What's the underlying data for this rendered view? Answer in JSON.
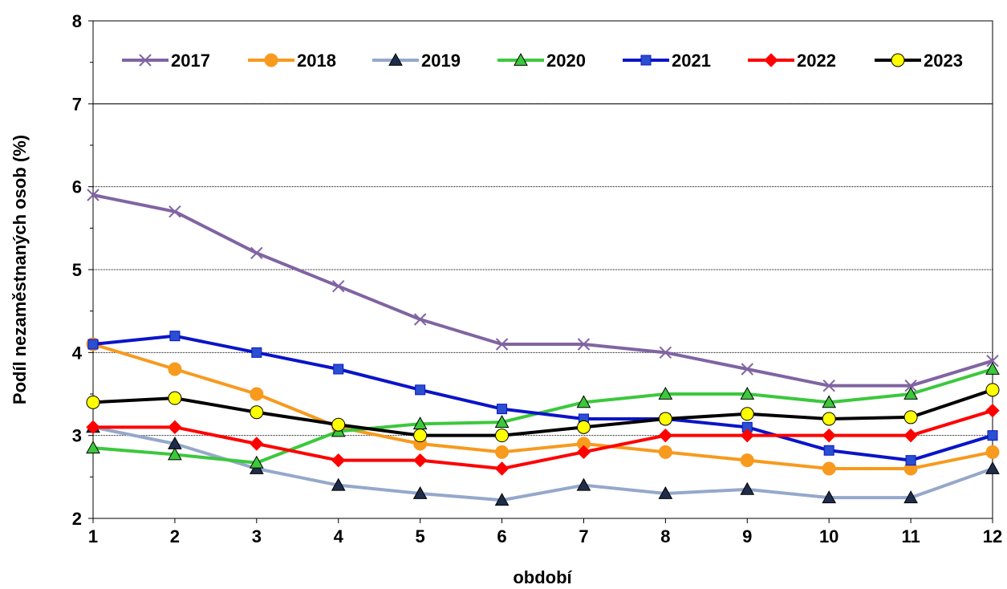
{
  "chart_data": {
    "type": "line",
    "title": "",
    "xlabel": "období",
    "ylabel": "Podíl nezaměstnaných osob (%)",
    "x": [
      1,
      2,
      3,
      4,
      5,
      6,
      7,
      8,
      9,
      10,
      11,
      12
    ],
    "xlim": [
      1,
      12
    ],
    "ylim": [
      2,
      8
    ],
    "yticks": [
      2,
      3,
      4,
      5,
      6,
      7,
      8
    ],
    "grid": "horizontal dotted",
    "legend_position": "top",
    "series": [
      {
        "name": "2017",
        "color": "#8064A2",
        "marker": "x",
        "values": [
          5.9,
          5.7,
          5.2,
          4.8,
          4.4,
          4.1,
          4.1,
          4.0,
          3.8,
          3.6,
          3.6,
          3.9
        ]
      },
      {
        "name": "2018",
        "color": "#F79A1E",
        "marker": "circle",
        "values": [
          4.1,
          3.8,
          3.5,
          3.1,
          2.9,
          2.8,
          2.9,
          2.8,
          2.7,
          2.6,
          2.6,
          2.8
        ]
      },
      {
        "name": "2019",
        "color": "#95A8CB",
        "marker": "triangle",
        "marker_fill": "#1F2D4A",
        "values": [
          3.1,
          2.9,
          2.6,
          2.4,
          2.3,
          2.22,
          2.4,
          2.3,
          2.35,
          2.25,
          2.25,
          2.6
        ]
      },
      {
        "name": "2020",
        "color": "#3CC83C",
        "marker": "triangle",
        "marker_fill": "#3CC83C",
        "values": [
          2.85,
          2.77,
          2.67,
          3.05,
          3.14,
          3.16,
          3.4,
          3.5,
          3.5,
          3.4,
          3.5,
          3.8
        ]
      },
      {
        "name": "2021",
        "color": "#0A14C8",
        "marker": "square",
        "marker_fill": "#2A4FD0",
        "values": [
          4.1,
          4.2,
          4.0,
          3.8,
          3.55,
          3.32,
          3.2,
          3.2,
          3.1,
          2.82,
          2.7,
          3.0
        ]
      },
      {
        "name": "2022",
        "color": "#FF0000",
        "marker": "diamond",
        "values": [
          3.1,
          3.1,
          2.9,
          2.7,
          2.7,
          2.6,
          2.8,
          3.0,
          3.0,
          3.0,
          3.0,
          3.3
        ]
      },
      {
        "name": "2023",
        "color": "#000000",
        "marker": "circle",
        "marker_fill": "#FFFF00",
        "values": [
          3.4,
          3.45,
          3.28,
          3.13,
          3.0,
          3.0,
          3.1,
          3.2,
          3.26,
          3.2,
          3.22,
          3.55
        ]
      }
    ]
  }
}
